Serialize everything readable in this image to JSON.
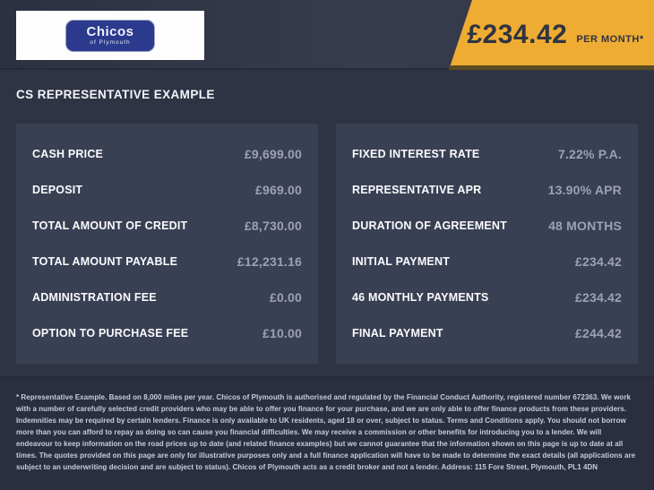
{
  "header": {
    "logo": {
      "brand": "Chicos",
      "sub": "of Plymouth"
    },
    "price_badge": {
      "amount": "£234.42",
      "suffix": "PER MONTH*"
    }
  },
  "section_title": "CS REPRESENTATIVE EXAMPLE",
  "finance": {
    "left_rows": [
      {
        "label": "CASH PRICE",
        "value": "£9,699.00"
      },
      {
        "label": "DEPOSIT",
        "value": "£969.00"
      },
      {
        "label": "TOTAL AMOUNT OF CREDIT",
        "value": "£8,730.00"
      },
      {
        "label": "TOTAL AMOUNT PAYABLE",
        "value": "£12,231.16"
      },
      {
        "label": "ADMINISTRATION FEE",
        "value": "£0.00"
      },
      {
        "label": "OPTION TO PURCHASE FEE",
        "value": "£10.00"
      }
    ],
    "right_rows": [
      {
        "label": "FIXED INTEREST RATE",
        "value": "7.22% P.A."
      },
      {
        "label": "REPRESENTATIVE APR",
        "value": "13.90% APR"
      },
      {
        "label": "DURATION OF AGREEMENT",
        "value": "48 MONTHS"
      },
      {
        "label": "INITIAL PAYMENT",
        "value": "£234.42"
      },
      {
        "label": "46 MONTHLY PAYMENTS",
        "value": "£234.42"
      },
      {
        "label": "FINAL PAYMENT",
        "value": "£244.42"
      }
    ]
  },
  "disclaimer": "* Representative Example. Based on 8,000 miles per year. Chicos of Plymouth is authorised and regulated by the Financial Conduct Authority, registered number 672363. We work with a number of carefully selected credit providers who may be able to offer you finance for your purchase, and we are only able to offer finance products from these providers. Indemnities may be required by certain lenders. Finance is only available to UK residents, aged 18 or over, subject to status. Terms and Conditions apply. You should not borrow more than you can afford to repay as doing so can cause you financial difficulties. We may receive a commission or other benefits for introducing you to a lender. We will endeavour to keep information on the road prices up to date (and related finance examples) but we cannot guarantee that the information shown on this page is up to date at all times. The quotes provided on this page are only for illustrative purposes only and a full finance application will have to be made to determine the exact details (all applications are subject to an underwriting decision and are subject to status). Chicos of Plymouth acts as a credit broker and not a lender. Address: 115 Fore Street, Plymouth, PL1 4DN",
  "colors": {
    "accent_gold": "#efac33",
    "gold_shadow": "#5d4c22",
    "page_bg": "#2f3445",
    "panel_bg": "#3a4053",
    "footer_bg": "#2a2e3e",
    "label_text": "#fcfcfe",
    "value_text": "#9ca1b6",
    "logo_blue": "#2b3a8c"
  }
}
